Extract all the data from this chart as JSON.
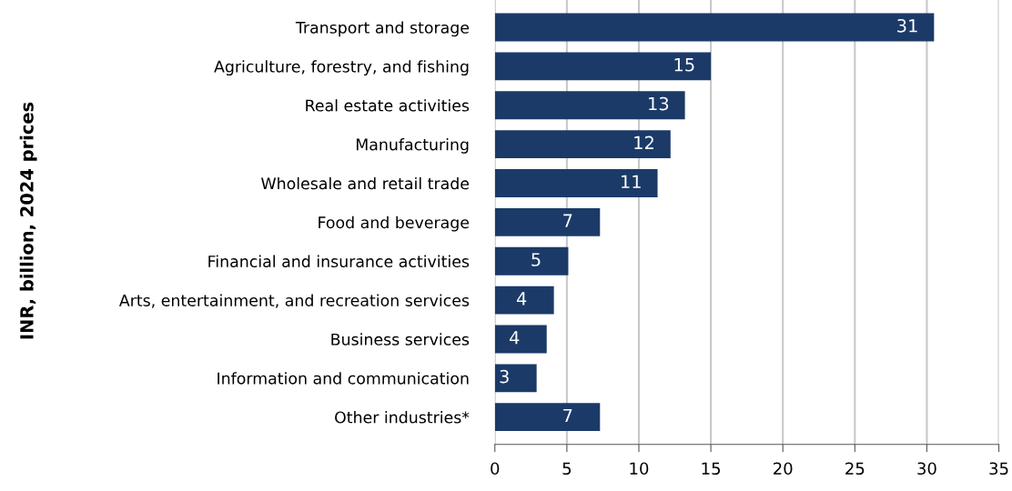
{
  "chart_data": {
    "type": "bar",
    "orientation": "horizontal",
    "ylabel": "INR, billion, 2024 prices",
    "categories": [
      "Transport and storage",
      "Agriculture, forestry, and fishing",
      "Real estate activities",
      "Manufacturing",
      "Wholesale and retail trade",
      "Food and beverage",
      "Financial and insurance activities",
      "Arts, entertainment, and recreation services",
      "Business services",
      "Information and communication",
      "Other industries*"
    ],
    "values": [
      30.5,
      15.0,
      13.2,
      12.2,
      11.3,
      7.3,
      5.1,
      4.1,
      3.6,
      2.9,
      7.3
    ],
    "value_labels": [
      "31",
      "15",
      "13",
      "12",
      "11",
      "7",
      "5",
      "4",
      "4",
      "3",
      "7"
    ],
    "color": "#1b3a68",
    "xlim": [
      0,
      35
    ],
    "xticks": [
      0,
      5,
      10,
      15,
      20,
      25,
      30,
      35
    ],
    "grid": "x"
  }
}
